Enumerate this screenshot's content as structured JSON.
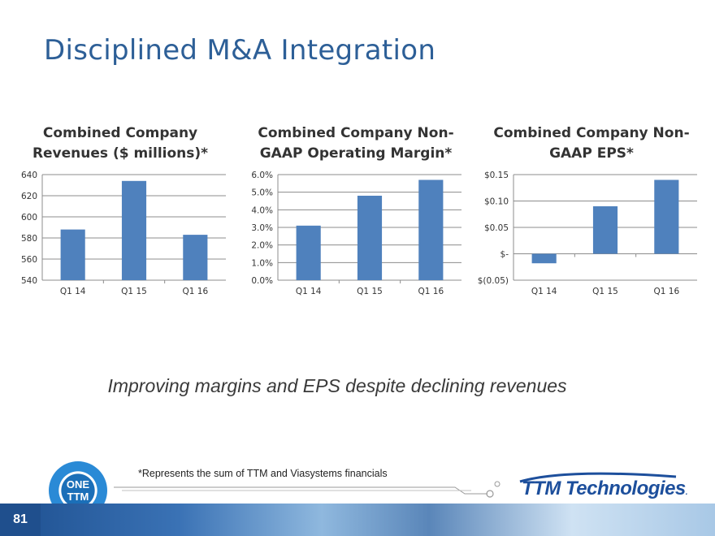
{
  "slide": {
    "title": "Disciplined M&A Integration",
    "tagline": "Improving margins and EPS despite declining revenues",
    "footnote": "*Represents the sum of TTM and Viasystems financials",
    "page_number": "81",
    "logo_text_top": "ONE",
    "logo_text_bottom": "TTM",
    "brand_name": "TTM Technologies",
    "brand_mark": "."
  },
  "colors": {
    "title": "#2d5f97",
    "bar": "#4f81bd",
    "grid": "#8c8c8c",
    "brand": "#1d4f9c"
  },
  "chart_data": [
    {
      "type": "bar",
      "title": "Combined Company\nRevenues ($ millions)*",
      "categories": [
        "Q1 14",
        "Q1 15",
        "Q1 16"
      ],
      "values": [
        588,
        634,
        583
      ],
      "ylim": [
        540,
        640
      ],
      "yticks": [
        540,
        560,
        580,
        600,
        620,
        640
      ],
      "ytick_labels": [
        "540",
        "560",
        "580",
        "600",
        "620",
        "640"
      ],
      "xlabel": "",
      "ylabel": "",
      "grid": true
    },
    {
      "type": "bar",
      "title": "Combined Company Non-\nGAAP Operating Margin*",
      "categories": [
        "Q1 14",
        "Q1 15",
        "Q1 16"
      ],
      "values": [
        3.1,
        4.8,
        5.7
      ],
      "ylim": [
        0,
        6
      ],
      "yticks": [
        0,
        1,
        2,
        3,
        4,
        5,
        6
      ],
      "ytick_labels": [
        "0.0%",
        "1.0%",
        "2.0%",
        "3.0%",
        "4.0%",
        "5.0%",
        "6.0%"
      ],
      "xlabel": "",
      "ylabel": "",
      "grid": true
    },
    {
      "type": "bar",
      "title": "Combined Company Non-\nGAAP EPS*",
      "categories": [
        "Q1 14",
        "Q1 15",
        "Q1 16"
      ],
      "values": [
        -0.018,
        0.09,
        0.14
      ],
      "ylim": [
        -0.05,
        0.15
      ],
      "yticks": [
        -0.05,
        0,
        0.05,
        0.1,
        0.15
      ],
      "ytick_labels": [
        "$(0.05)",
        "$-",
        "$0.05",
        "$0.10",
        "$0.15"
      ],
      "xlabel": "",
      "ylabel": "",
      "grid": true
    }
  ]
}
